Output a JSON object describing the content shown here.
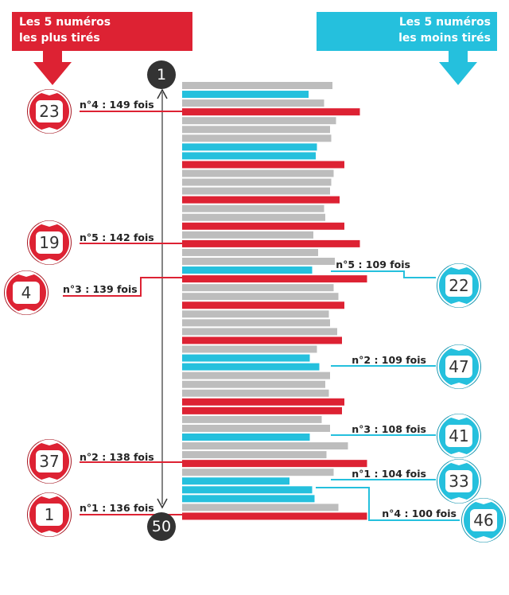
{
  "headers": {
    "most": {
      "line1": "Les 5 numéros",
      "line2": "les plus tirés"
    },
    "least": {
      "line1": "Les 5 numéros",
      "line2": "les moins tirés"
    }
  },
  "rank_top": "1",
  "rank_bottom": "50",
  "colors": {
    "most": "#dd2233",
    "least": "#25c0dd",
    "other": "#bdbdbd",
    "ink": "#333333"
  },
  "chart_data": {
    "type": "bar",
    "orientation": "horizontal",
    "ranks": [
      1,
      2,
      3,
      4,
      5,
      6,
      7,
      8,
      9,
      10,
      11,
      12,
      13,
      14,
      15,
      16,
      17,
      18,
      19,
      20,
      21,
      22,
      23,
      24,
      25,
      26,
      27,
      28,
      29,
      30,
      31,
      32,
      33,
      34,
      35,
      36,
      37,
      38,
      39,
      40,
      41,
      42,
      43,
      44,
      45,
      46,
      47,
      48,
      49,
      50
    ],
    "values": [
      126,
      106,
      119,
      149,
      129,
      124,
      125,
      113,
      112,
      136,
      127,
      125,
      124,
      132,
      119,
      120,
      136,
      110,
      149,
      114,
      128,
      109,
      155,
      127,
      131,
      136,
      123,
      124,
      130,
      134,
      113,
      107,
      115,
      124,
      120,
      123,
      136,
      134,
      117,
      124,
      107,
      139,
      121,
      155,
      127,
      90,
      109,
      111,
      131,
      155
    ],
    "highlight": [
      "other",
      "least",
      "other",
      "most",
      "other",
      "other",
      "other",
      "least",
      "least",
      "most",
      "other",
      "other",
      "other",
      "most",
      "other",
      "other",
      "most",
      "other",
      "most",
      "other",
      "other",
      "least",
      "most",
      "other",
      "other",
      "most",
      "other",
      "other",
      "other",
      "most",
      "other",
      "least",
      "least",
      "other",
      "other",
      "other",
      "most",
      "most",
      "other",
      "other",
      "least",
      "other",
      "other",
      "most",
      "other",
      "least",
      "least",
      "least",
      "other",
      "most"
    ],
    "most_drawn": [
      {
        "number": "23",
        "label": "n°4 : 149 fois"
      },
      {
        "number": "19",
        "label": "n°5 : 142 fois"
      },
      {
        "number": "4",
        "label": "n°3 : 139 fois"
      },
      {
        "number": "37",
        "label": "n°2 : 138 fois"
      },
      {
        "number": "1",
        "label": "n°1 : 136 fois"
      }
    ],
    "least_drawn": [
      {
        "number": "22",
        "label": "n°5 : 109 fois"
      },
      {
        "number": "47",
        "label": "n°2 : 109 fois"
      },
      {
        "number": "41",
        "label": "n°3 : 108 fois"
      },
      {
        "number": "33",
        "label": "n°1 : 104 fois"
      },
      {
        "number": "46",
        "label": "n°4 : 100 fois"
      }
    ]
  }
}
